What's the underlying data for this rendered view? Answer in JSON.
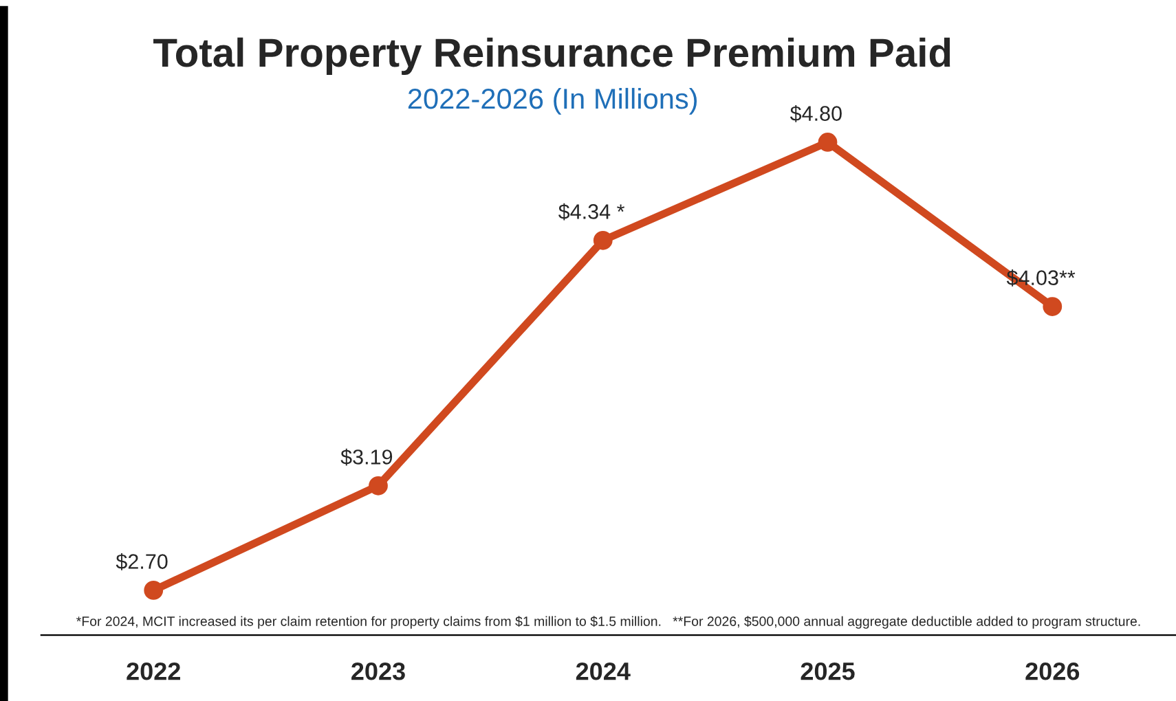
{
  "chart_data": {
    "type": "line",
    "title": "Total Property Reinsurance Premium Paid",
    "subtitle": "2022-2026 (In Millions)",
    "categories": [
      "2022",
      "2023",
      "2024",
      "2025",
      "2026"
    ],
    "series": [
      {
        "color": "#d0491f",
        "values": [
          2.7,
          3.19,
          4.34,
          4.8,
          4.03
        ],
        "value_labels": [
          "$2.70",
          "$3.19",
          "$4.34 *",
          "$4.80",
          "$4.03**"
        ]
      }
    ],
    "tick_labels": "x",
    "marker": "circle",
    "line_style": "solid",
    "grid": false,
    "legend": false,
    "annotations": [
      "*For 2024, MCIT increased its per claim retention for property claims from $1 million to $1.5 million.   **For 2026, $500,000 annual aggregate deductible added to program structure."
    ]
  }
}
